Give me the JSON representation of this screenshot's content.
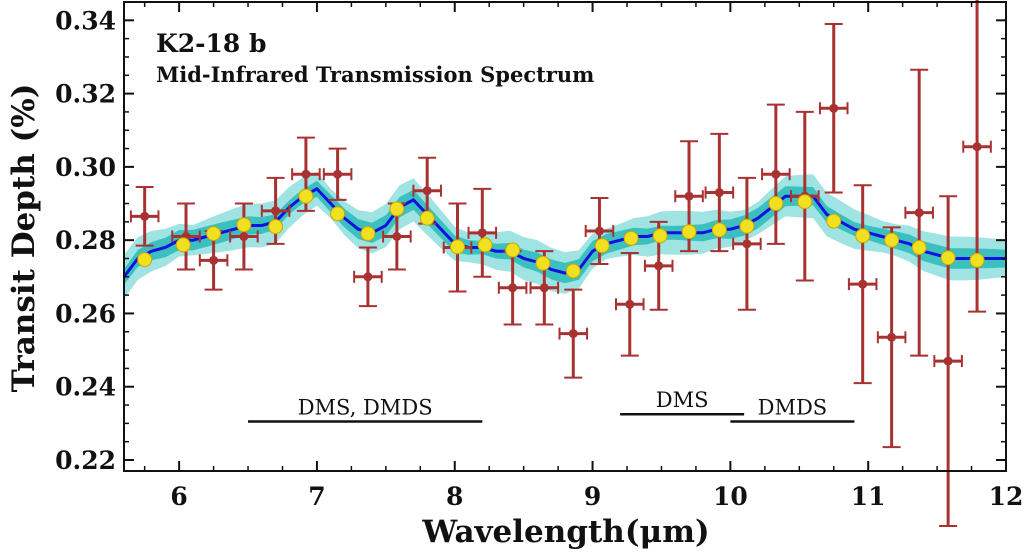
{
  "chart_data": {
    "type": "scatter",
    "title": "K2-18 b",
    "subtitle": "Mid-Infrared Transmission Spectrum",
    "xlabel": "Wavelength(μm)",
    "ylabel": "Transit Depth (%)",
    "xlim": [
      5.6,
      12.0
    ],
    "ylim": [
      0.217,
      0.345
    ],
    "xticks": [
      6,
      7,
      8,
      9,
      10,
      11,
      12
    ],
    "yticks": [
      0.22,
      0.24,
      0.26,
      0.28,
      0.3,
      0.32,
      0.34
    ],
    "ytick_labels": [
      "0.22",
      "0.24",
      "0.26",
      "0.28",
      "0.30",
      "0.32",
      "0.34"
    ],
    "grid": false,
    "colors": {
      "observed": "#a83232",
      "binned_model": "#f0e020",
      "binned_model_edge": "#c8a800",
      "model_line": "#1010e0",
      "band_outer": "#9fe3e3",
      "band_inner": "#3bbfbf"
    },
    "series": [
      {
        "kind": "errorbar",
        "x": [
          5.75,
          6.05,
          6.25,
          6.47,
          6.7,
          6.92,
          7.15,
          7.37,
          7.58,
          7.8,
          8.02,
          8.2,
          8.42,
          8.65,
          8.86,
          9.05,
          9.27,
          9.48,
          9.7,
          9.92,
          10.12,
          10.33,
          10.54,
          10.75,
          10.96,
          11.17,
          11.37,
          11.58,
          11.79
        ],
        "y": [
          0.2865,
          0.281,
          0.2745,
          0.281,
          0.288,
          0.298,
          0.298,
          0.27,
          0.281,
          0.2935,
          0.278,
          0.282,
          0.267,
          0.267,
          0.2545,
          0.2825,
          0.2625,
          0.273,
          0.292,
          0.293,
          0.279,
          0.298,
          0.292,
          0.316,
          0.268,
          0.2535,
          0.2875,
          0.247,
          0.3055
        ],
        "xerr": [
          0.1,
          0.1,
          0.1,
          0.1,
          0.1,
          0.1,
          0.1,
          0.1,
          0.1,
          0.1,
          0.1,
          0.1,
          0.1,
          0.1,
          0.1,
          0.1,
          0.1,
          0.1,
          0.1,
          0.1,
          0.1,
          0.1,
          0.1,
          0.1,
          0.1,
          0.1,
          0.1,
          0.1,
          0.1
        ],
        "yerr": [
          0.008,
          0.009,
          0.008,
          0.009,
          0.009,
          0.01,
          0.007,
          0.008,
          0.009,
          0.009,
          0.012,
          0.012,
          0.01,
          0.01,
          0.012,
          0.009,
          0.014,
          0.012,
          0.015,
          0.016,
          0.018,
          0.019,
          0.023,
          0.023,
          0.027,
          0.03,
          0.039,
          0.045,
          0.045
        ]
      },
      {
        "kind": "binned-model",
        "x": [
          5.75,
          6.03,
          6.25,
          6.47,
          6.7,
          6.92,
          7.15,
          7.37,
          7.58,
          7.8,
          8.02,
          8.22,
          8.42,
          8.64,
          8.86,
          9.07,
          9.28,
          9.49,
          9.7,
          9.92,
          10.12,
          10.33,
          10.54,
          10.75,
          10.96,
          11.17,
          11.37,
          11.58,
          11.79
        ],
        "y": [
          0.2747,
          0.2787,
          0.2818,
          0.2842,
          0.2837,
          0.292,
          0.2872,
          0.2818,
          0.2885,
          0.286,
          0.2782,
          0.2787,
          0.2773,
          0.2737,
          0.2716,
          0.2785,
          0.2805,
          0.2812,
          0.2823,
          0.2828,
          0.2838,
          0.29,
          0.2905,
          0.2852,
          0.2812,
          0.28,
          0.278,
          0.2752,
          0.2745
        ]
      },
      {
        "kind": "model-line",
        "x": [
          5.6,
          5.7,
          5.8,
          5.9,
          6.0,
          6.1,
          6.2,
          6.3,
          6.4,
          6.5,
          6.6,
          6.7,
          6.8,
          6.9,
          7.0,
          7.1,
          7.2,
          7.3,
          7.4,
          7.5,
          7.6,
          7.7,
          7.8,
          7.9,
          8.0,
          8.1,
          8.2,
          8.3,
          8.4,
          8.5,
          8.6,
          8.7,
          8.8,
          8.9,
          9.0,
          9.1,
          9.2,
          9.3,
          9.4,
          9.5,
          9.6,
          9.7,
          9.8,
          9.9,
          10.0,
          10.1,
          10.2,
          10.3,
          10.4,
          10.5,
          10.6,
          10.7,
          10.8,
          10.9,
          11.0,
          11.1,
          11.2,
          11.3,
          11.4,
          11.5,
          11.6,
          11.7,
          11.8,
          11.9,
          12.0
        ],
        "y": [
          0.27,
          0.275,
          0.277,
          0.278,
          0.28,
          0.28,
          0.281,
          0.282,
          0.283,
          0.284,
          0.284,
          0.285,
          0.289,
          0.292,
          0.294,
          0.29,
          0.286,
          0.283,
          0.282,
          0.284,
          0.289,
          0.291,
          0.287,
          0.283,
          0.279,
          0.278,
          0.278,
          0.277,
          0.277,
          0.275,
          0.274,
          0.272,
          0.271,
          0.272,
          0.277,
          0.279,
          0.28,
          0.281,
          0.281,
          0.282,
          0.282,
          0.282,
          0.282,
          0.283,
          0.283,
          0.284,
          0.286,
          0.289,
          0.292,
          0.292,
          0.292,
          0.287,
          0.285,
          0.283,
          0.282,
          0.281,
          0.28,
          0.279,
          0.277,
          0.276,
          0.275,
          0.275,
          0.275,
          0.275,
          0.275
        ]
      }
    ],
    "annotations": [
      {
        "text": "DMS, DMDS",
        "x_start": 6.5,
        "x_end": 8.2,
        "y": 0.2305
      },
      {
        "text": "DMS",
        "x_start": 9.2,
        "x_end": 10.1,
        "y": 0.2325
      },
      {
        "text": "DMDS",
        "x_start": 10.0,
        "x_end": 10.9,
        "y": 0.2305
      }
    ]
  }
}
